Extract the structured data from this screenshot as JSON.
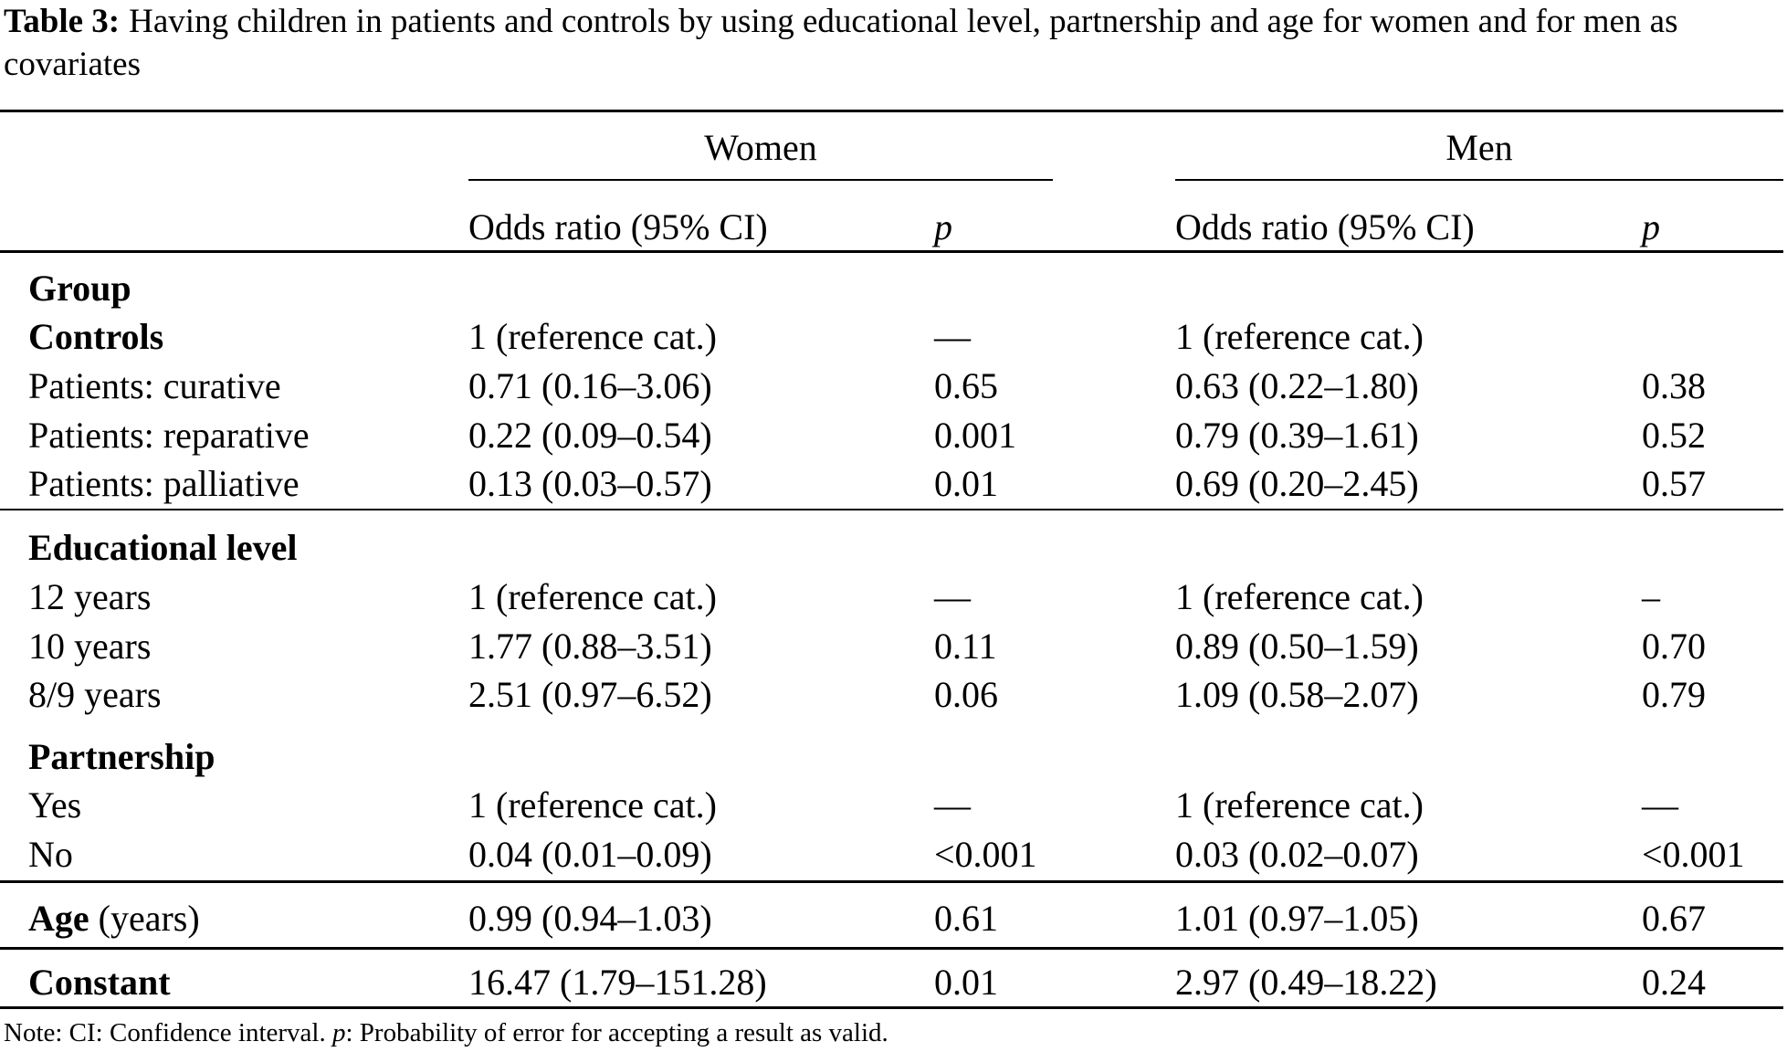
{
  "caption": {
    "label": "Table 3:",
    "text": "Having children in patients and controls by using educational level, partnership and age for women and for men as covariates"
  },
  "header": {
    "groups": [
      "Women",
      "Men"
    ],
    "columns": [
      "Odds ratio (95% CI)",
      "p",
      "Odds ratio (95% CI)",
      "p"
    ]
  },
  "rows": [
    {
      "label": "Group",
      "bold": true,
      "cells": [
        "",
        "",
        "",
        ""
      ]
    },
    {
      "label": "Controls",
      "bold": true,
      "cells": [
        "1 (reference cat.)",
        "—",
        "1 (reference cat.)",
        ""
      ]
    },
    {
      "label": "Patients: curative",
      "cells": [
        "0.71 (0.16–3.06)",
        "0.65",
        "0.63 (0.22–1.80)",
        "0.38"
      ]
    },
    {
      "label": "Patients: reparative",
      "cells": [
        "0.22 (0.09–0.54)",
        "0.001",
        "0.79 (0.39–1.61)",
        "0.52"
      ]
    },
    {
      "label": "Patients: palliative",
      "cells": [
        "0.13 (0.03–0.57)",
        "0.01",
        "0.69 (0.20–2.45)",
        "0.57"
      ]
    },
    {
      "label": "Educational level",
      "bold": true,
      "cells": [
        "",
        "",
        "",
        ""
      ]
    },
    {
      "label": "12 years",
      "cells": [
        "1 (reference cat.)",
        "—",
        "1 (reference cat.)",
        "–"
      ]
    },
    {
      "label": "10 years",
      "cells": [
        "1.77 (0.88–3.51)",
        "0.11",
        "0.89 (0.50–1.59)",
        "0.70"
      ]
    },
    {
      "label": "8/9 years",
      "cells": [
        "2.51 (0.97–6.52)",
        "0.06",
        "1.09 (0.58–2.07)",
        "0.79"
      ]
    },
    {
      "label": "Partnership",
      "bold": true,
      "cells": [
        "",
        "",
        "",
        ""
      ]
    },
    {
      "label": "Yes",
      "cells": [
        "1 (reference cat.)",
        "—",
        "1 (reference cat.)",
        "—"
      ]
    },
    {
      "label": "No",
      "cells": [
        "0.04 (0.01–0.09)",
        "<0.001",
        "0.03 (0.02–0.07)",
        "<0.001"
      ]
    },
    {
      "label": "Age",
      "bold": true,
      "suffix": " (years)",
      "cells": [
        "0.99 (0.94–1.03)",
        "0.61",
        "1.01 (0.97–1.05)",
        "0.67"
      ]
    },
    {
      "label": "Constant",
      "bold": true,
      "cells": [
        "16.47 (1.79–151.28)",
        "0.01",
        "2.97 (0.49–18.22)",
        "0.24"
      ]
    }
  ],
  "note": {
    "prefix": "Note: CI: Confidence interval. ",
    "p": "p",
    "text": ": Probability of error for accepting a result as valid."
  }
}
